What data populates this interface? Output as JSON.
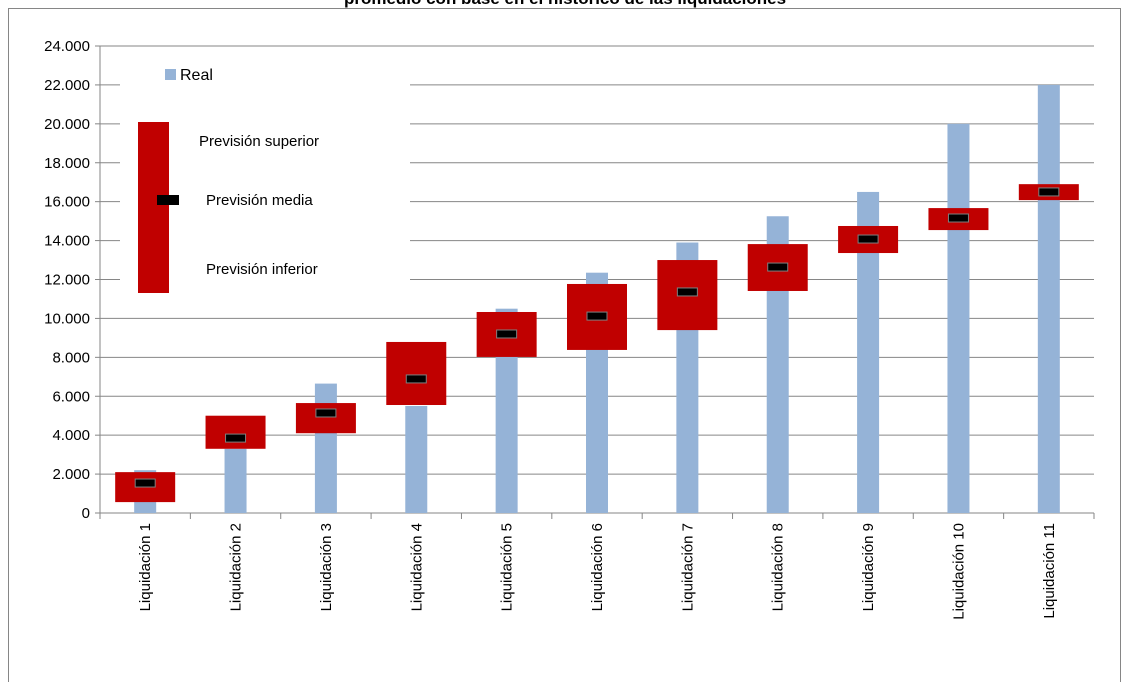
{
  "chart_data": {
    "type": "bar",
    "title": "promedio con base en el histórico de las liquidaciones",
    "categories": [
      "Liquidación 1",
      "Liquidación 2",
      "Liquidación 3",
      "Liquidación 4",
      "Liquidación 5",
      "Liquidación 6",
      "Liquidación 7",
      "Liquidación 8",
      "Liquidación 9",
      "Liquidación 10",
      "Liquidación 11"
    ],
    "series": [
      {
        "name": "Real",
        "color": "#95b3d7",
        "values": [
          2200,
          3300,
          6650,
          5500,
          10500,
          12350,
          13900,
          15250,
          16500,
          20000,
          22000
        ]
      },
      {
        "name": "Previsión superior",
        "color": "#c00000",
        "values": [
          2100,
          5000,
          5650,
          8790,
          10330,
          11770,
          13000,
          13820,
          14750,
          15670,
          16900
        ]
      },
      {
        "name": "Previsión media",
        "color": "#000000",
        "values": [
          1540,
          3850,
          5140,
          6890,
          9200,
          10120,
          11360,
          12640,
          14080,
          15160,
          16500
        ]
      },
      {
        "name": "Previsión inferior",
        "color": "#c00000",
        "values": [
          560,
          3300,
          4100,
          5550,
          8020,
          8380,
          9400,
          11410,
          13360,
          14540,
          16080
        ]
      }
    ],
    "ylim": [
      0,
      24000
    ],
    "yticks": [
      0,
      {
        "value": 2000,
        "label": "2.000"
      },
      {
        "value": 4000,
        "label": "4.000"
      },
      {
        "value": 6000,
        "label": "6.000"
      },
      {
        "value": 8000,
        "label": "8.000"
      },
      {
        "value": 10000,
        "label": "10.000"
      },
      {
        "value": 12000,
        "label": "12.000"
      },
      {
        "value": 14000,
        "label": "14.000"
      },
      {
        "value": 16000,
        "label": "16.000"
      },
      {
        "value": 18000,
        "label": "18.000"
      },
      {
        "value": 20000,
        "label": "20.000"
      },
      {
        "value": 22000,
        "label": "22.000"
      },
      {
        "value": 24000,
        "label": "24.000"
      }
    ],
    "grid": true
  }
}
